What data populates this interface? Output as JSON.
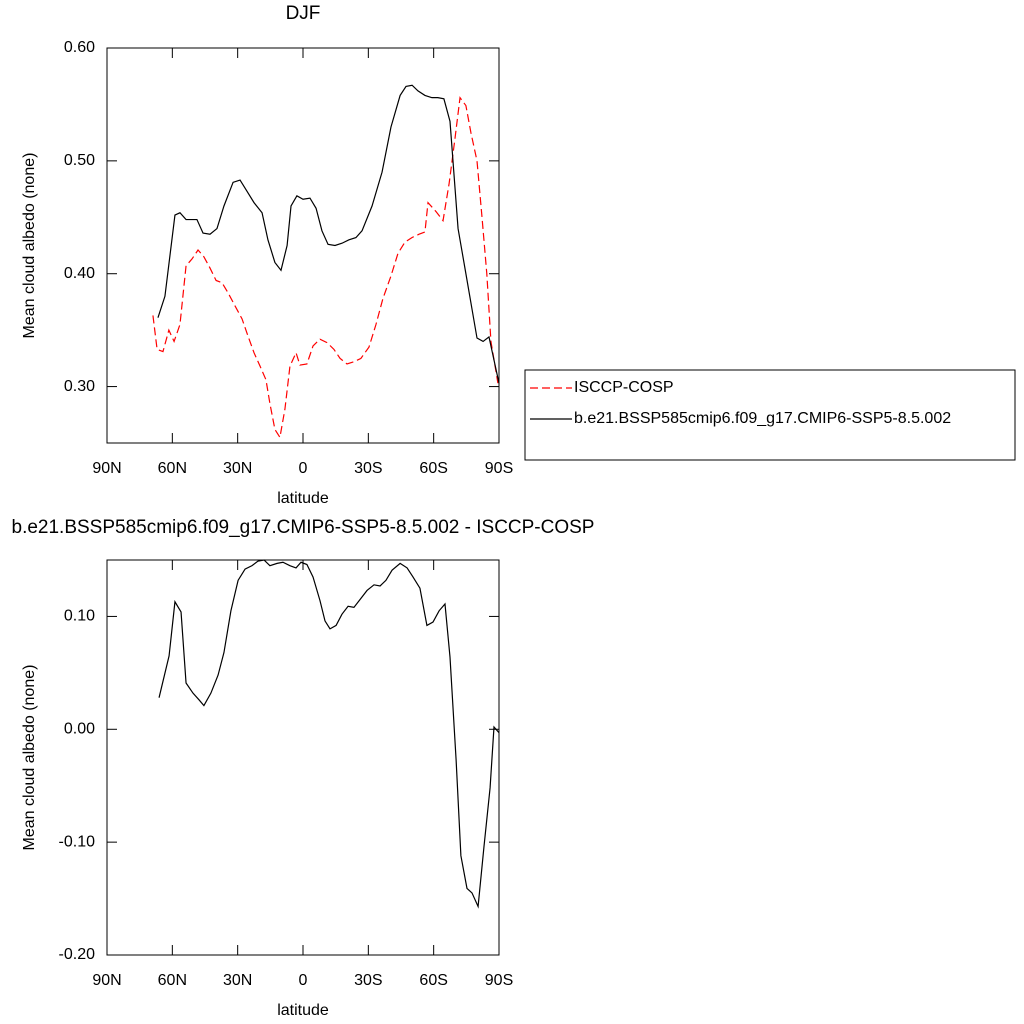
{
  "chart_data": [
    {
      "type": "line",
      "title": "DJF",
      "xlabel": "latitude",
      "ylabel": "Mean cloud albedo (none)",
      "xlim": [
        90,
        -90
      ],
      "ylim": [
        0.25,
        0.6
      ],
      "xticks": [
        {
          "value": 90,
          "label": "90N"
        },
        {
          "value": 60,
          "label": "60N"
        },
        {
          "value": 30,
          "label": "30N"
        },
        0,
        {
          "value": -30,
          "label": "30S"
        },
        {
          "value": -60,
          "label": "60S"
        },
        {
          "value": -90,
          "label": "90S"
        }
      ],
      "yticks": [
        {
          "value": 0.3,
          "label": "0.30"
        },
        {
          "value": 0.4,
          "label": "0.40"
        },
        {
          "value": 0.5,
          "label": "0.50"
        },
        {
          "value": 0.6,
          "label": "0.60"
        }
      ],
      "legend": "right",
      "series": [
        {
          "name": "ISCCP-COSP",
          "color": "#ff0000",
          "dash": "dashed",
          "x": [
            68.9,
            67.0,
            64.3,
            61.6,
            59.2,
            56.5,
            53.7,
            51.0,
            48.2,
            45.5,
            42.7,
            39.9,
            37.2,
            34.4,
            30.8,
            28.0,
            25.3,
            22.5,
            19.7,
            17.0,
            15.2,
            12.9,
            10.6,
            8.3,
            6.0,
            3.2,
            1.4,
            -1.8,
            -4.6,
            -7.8,
            -11.0,
            -14.2,
            -17.0,
            -20.2,
            -23.4,
            -26.6,
            -30.3,
            -33.5,
            -36.7,
            -40.4,
            -43.6,
            -46.8,
            -50.0,
            -53.3,
            -56.0,
            -57.4,
            -61.1,
            -64.3,
            -67.1,
            -69.8,
            -72.1,
            -74.8,
            -77.1,
            -79.9,
            -82.2,
            -84.4,
            -86.3,
            -89.5
          ],
          "values": [
            0.363,
            0.333,
            0.331,
            0.35,
            0.34,
            0.355,
            0.407,
            0.413,
            0.421,
            0.415,
            0.405,
            0.394,
            0.392,
            0.383,
            0.37,
            0.36,
            0.345,
            0.33,
            0.318,
            0.306,
            0.285,
            0.262,
            0.255,
            0.28,
            0.318,
            0.33,
            0.319,
            0.32,
            0.336,
            0.342,
            0.339,
            0.333,
            0.325,
            0.32,
            0.322,
            0.325,
            0.335,
            0.355,
            0.378,
            0.398,
            0.418,
            0.428,
            0.432,
            0.435,
            0.437,
            0.463,
            0.455,
            0.447,
            0.48,
            0.52,
            0.556,
            0.549,
            0.525,
            0.5,
            0.45,
            0.4,
            0.34,
            0.303
          ]
        },
        {
          "name": "b.e21.BSSP585cmip6.f09_g17.CMIP6-SSP5-8.5.002",
          "color": "#000000",
          "dash": "solid",
          "x": [
            66.6,
            63.4,
            58.8,
            56.5,
            53.7,
            48.7,
            45.9,
            42.7,
            39.5,
            36.3,
            32.1,
            28.9,
            25.7,
            22.5,
            18.8,
            16.1,
            12.9,
            10.1,
            7.3,
            5.5,
            2.8,
            0,
            -3.2,
            -6.0,
            -8.7,
            -11.5,
            -14.7,
            -17.9,
            -21.1,
            -24.3,
            -27.1,
            -31.7,
            -36.3,
            -40.4,
            -44.6,
            -47.3,
            -50.1,
            -52.8,
            -56.0,
            -59.2,
            -61.9,
            -64.7,
            -67.5,
            -71.2,
            -74.8,
            -79.9,
            -82.7,
            -85.4,
            -90
          ],
          "values": [
            0.361,
            0.38,
            0.452,
            0.454,
            0.448,
            0.448,
            0.436,
            0.435,
            0.44,
            0.46,
            0.481,
            0.483,
            0.473,
            0.463,
            0.454,
            0.43,
            0.41,
            0.403,
            0.425,
            0.46,
            0.469,
            0.466,
            0.467,
            0.458,
            0.438,
            0.426,
            0.425,
            0.427,
            0.43,
            0.432,
            0.438,
            0.46,
            0.49,
            0.53,
            0.558,
            0.566,
            0.567,
            0.562,
            0.558,
            0.556,
            0.556,
            0.555,
            0.535,
            0.44,
            0.4,
            0.343,
            0.34,
            0.344,
            0.303
          ]
        }
      ]
    },
    {
      "type": "line",
      "title": "b.e21.BSSP585cmip6.f09_g17.CMIP6-SSP5-8.5.002 - ISCCP-COSP",
      "xlabel": "latitude",
      "ylabel": "Mean cloud albedo (none)",
      "xlim": [
        90,
        -90
      ],
      "ylim": [
        -0.2,
        0.15
      ],
      "xticks": [
        {
          "value": 90,
          "label": "90N"
        },
        {
          "value": 60,
          "label": "60N"
        },
        {
          "value": 30,
          "label": "30N"
        },
        0,
        {
          "value": -30,
          "label": "30S"
        },
        {
          "value": -60,
          "label": "60S"
        },
        {
          "value": -90,
          "label": "90S"
        }
      ],
      "yticks": [
        {
          "value": -0.2,
          "label": "-0.20"
        },
        {
          "value": -0.1,
          "label": "-0.10"
        },
        {
          "value": 0,
          "label": "0.00"
        },
        {
          "value": 0.1,
          "label": "0.10"
        }
      ],
      "color": "#000000",
      "x": [
        66.1,
        61.5,
        58.8,
        56.0,
        53.7,
        50.5,
        47.7,
        45.5,
        42.3,
        39.0,
        36.3,
        33.1,
        29.8,
        26.6,
        23.4,
        20.7,
        17.9,
        15.2,
        11.9,
        9.2,
        6.0,
        3.2,
        0.9,
        -1.8,
        -4.6,
        -7.8,
        -10.1,
        -12.4,
        -15.2,
        -17.9,
        -20.7,
        -23.4,
        -26.2,
        -29.4,
        -32.6,
        -35.4,
        -38.1,
        -40.9,
        -44.6,
        -47.8,
        -50.5,
        -53.7,
        -56.9,
        -59.7,
        -62.5,
        -65.2,
        -67.5,
        -70.3,
        -72.5,
        -75.3,
        -77.6,
        -80.4,
        -83.1,
        -85.9,
        -87.7,
        -90
      ],
      "values": [
        0.028,
        0.065,
        0.113,
        0.104,
        0.041,
        0.032,
        0.026,
        0.021,
        0.032,
        0.048,
        0.068,
        0.105,
        0.132,
        0.142,
        0.145,
        0.149,
        0.15,
        0.145,
        0.147,
        0.148,
        0.145,
        0.143,
        0.148,
        0.146,
        0.135,
        0.114,
        0.096,
        0.089,
        0.092,
        0.102,
        0.109,
        0.108,
        0.115,
        0.123,
        0.128,
        0.127,
        0.132,
        0.141,
        0.147,
        0.143,
        0.135,
        0.125,
        0.092,
        0.095,
        0.105,
        0.111,
        0.064,
        -0.027,
        -0.112,
        -0.141,
        -0.145,
        -0.157,
        -0.104,
        -0.052,
        0.002,
        -0.003
      ]
    }
  ]
}
